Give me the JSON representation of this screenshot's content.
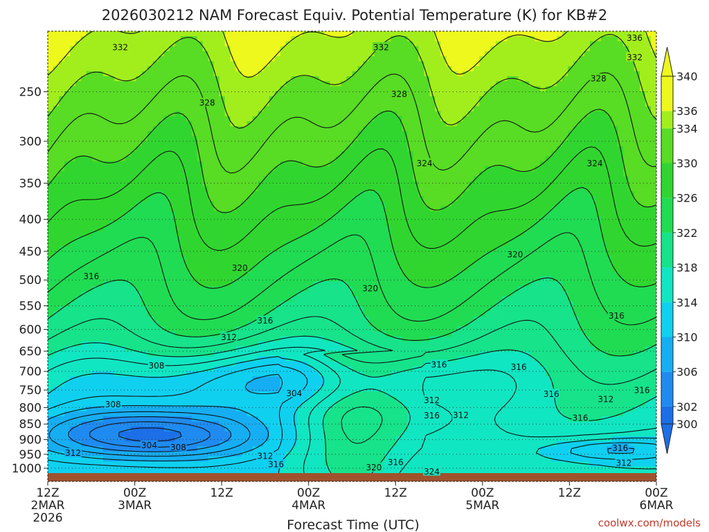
{
  "chart_data": {
    "type": "heatmap",
    "title": "2026030212 NAM Forecast Equiv. Potential Temperature (K) for KB#2",
    "xlabel": "Forecast Time (UTC)",
    "ylabel": "",
    "x_ticks": [
      {
        "hour": 0,
        "line1": "12Z",
        "line2": "2MAR",
        "line3": "2026"
      },
      {
        "hour": 12,
        "line1": "00Z",
        "line2": "3MAR",
        "line3": ""
      },
      {
        "hour": 24,
        "line1": "12Z",
        "line2": "",
        "line3": ""
      },
      {
        "hour": 36,
        "line1": "00Z",
        "line2": "4MAR",
        "line3": ""
      },
      {
        "hour": 48,
        "line1": "12Z",
        "line2": "",
        "line3": ""
      },
      {
        "hour": 60,
        "line1": "00Z",
        "line2": "5MAR",
        "line3": ""
      },
      {
        "hour": 72,
        "line1": "12Z",
        "line2": "",
        "line3": ""
      },
      {
        "hour": 84,
        "line1": "00Z",
        "line2": "6MAR",
        "line3": ""
      }
    ],
    "y_ticks": [
      "250",
      "300",
      "350",
      "400",
      "450",
      "500",
      "550",
      "600",
      "650",
      "700",
      "750",
      "800",
      "850",
      "900",
      "950",
      "1000"
    ],
    "y_axis": {
      "scale": "log-pressure",
      "units": "hPa",
      "top": 200,
      "bottom": 1050
    },
    "x_range_hours": [
      0,
      84
    ],
    "colorbar": {
      "ticks": [
        "300",
        "302",
        "306",
        "310",
        "314",
        "318",
        "322",
        "326",
        "330",
        "334",
        "336",
        "340"
      ],
      "levels": [
        {
          "min": 298,
          "max": 302,
          "color": "#1c6fe6"
        },
        {
          "min": 302,
          "max": 306,
          "color": "#1f8bf0"
        },
        {
          "min": 306,
          "max": 310,
          "color": "#16aef2"
        },
        {
          "min": 310,
          "max": 314,
          "color": "#10d0f0"
        },
        {
          "min": 314,
          "max": 318,
          "color": "#11e6c2"
        },
        {
          "min": 318,
          "max": 322,
          "color": "#16e38a"
        },
        {
          "min": 322,
          "max": 326,
          "color": "#20dc52"
        },
        {
          "min": 326,
          "max": 330,
          "color": "#30d62f"
        },
        {
          "min": 330,
          "max": 334,
          "color": "#58dc24"
        },
        {
          "min": 334,
          "max": 336,
          "color": "#a2ee1c"
        },
        {
          "min": 336,
          "max": 340,
          "color": "#eef81c"
        }
      ]
    },
    "contour_labels": [
      {
        "label": "336",
        "hour": 81.0,
        "p": 205
      },
      {
        "label": "332",
        "hour": 10.0,
        "p": 212
      },
      {
        "label": "332",
        "hour": 46.0,
        "p": 212
      },
      {
        "label": "332",
        "hour": 81.0,
        "p": 220
      },
      {
        "label": "328",
        "hour": 76.0,
        "p": 238
      },
      {
        "label": "328",
        "hour": 22.0,
        "p": 260
      },
      {
        "label": "328",
        "hour": 48.5,
        "p": 252
      },
      {
        "label": "324",
        "hour": 52.0,
        "p": 325
      },
      {
        "label": "324",
        "hour": 75.5,
        "p": 325
      },
      {
        "label": "320",
        "hour": 26.5,
        "p": 478
      },
      {
        "label": "320",
        "hour": 64.5,
        "p": 455
      },
      {
        "label": "320",
        "hour": 44.5,
        "p": 515
      },
      {
        "label": "316",
        "hour": 6.0,
        "p": 493
      },
      {
        "label": "316",
        "hour": 30.0,
        "p": 580
      },
      {
        "label": "316",
        "hour": 78.5,
        "p": 570
      },
      {
        "label": "316",
        "hour": 54.0,
        "p": 682
      },
      {
        "label": "316",
        "hour": 65.0,
        "p": 688
      },
      {
        "label": "316",
        "hour": 69.5,
        "p": 760
      },
      {
        "label": "316",
        "hour": 82.0,
        "p": 750
      },
      {
        "label": "316",
        "hour": 53.0,
        "p": 823
      },
      {
        "label": "316",
        "hour": 73.5,
        "p": 830
      },
      {
        "label": "316",
        "hour": 79.0,
        "p": 928
      },
      {
        "label": "316",
        "hour": 31.5,
        "p": 985
      },
      {
        "label": "316",
        "hour": 48.0,
        "p": 978
      },
      {
        "label": "312",
        "hour": 25.0,
        "p": 617
      },
      {
        "label": "312",
        "hour": 53.0,
        "p": 778
      },
      {
        "label": "312",
        "hour": 57.0,
        "p": 822
      },
      {
        "label": "312",
        "hour": 77.0,
        "p": 775
      },
      {
        "label": "312",
        "hour": 30.0,
        "p": 955
      },
      {
        "label": "312",
        "hour": 3.5,
        "p": 945
      },
      {
        "label": "312",
        "hour": 79.5,
        "p": 980
      },
      {
        "label": "308",
        "hour": 15.0,
        "p": 685
      },
      {
        "label": "308",
        "hour": 9.0,
        "p": 790
      },
      {
        "label": "308",
        "hour": 18.0,
        "p": 925
      },
      {
        "label": "304",
        "hour": 34.0,
        "p": 758
      },
      {
        "label": "304",
        "hour": 14.0,
        "p": 918
      },
      {
        "label": "320",
        "hour": 45.0,
        "p": 997
      },
      {
        "label": "324",
        "hour": 53.0,
        "p": 1012
      }
    ]
  },
  "credit": "coolwx.com/models"
}
